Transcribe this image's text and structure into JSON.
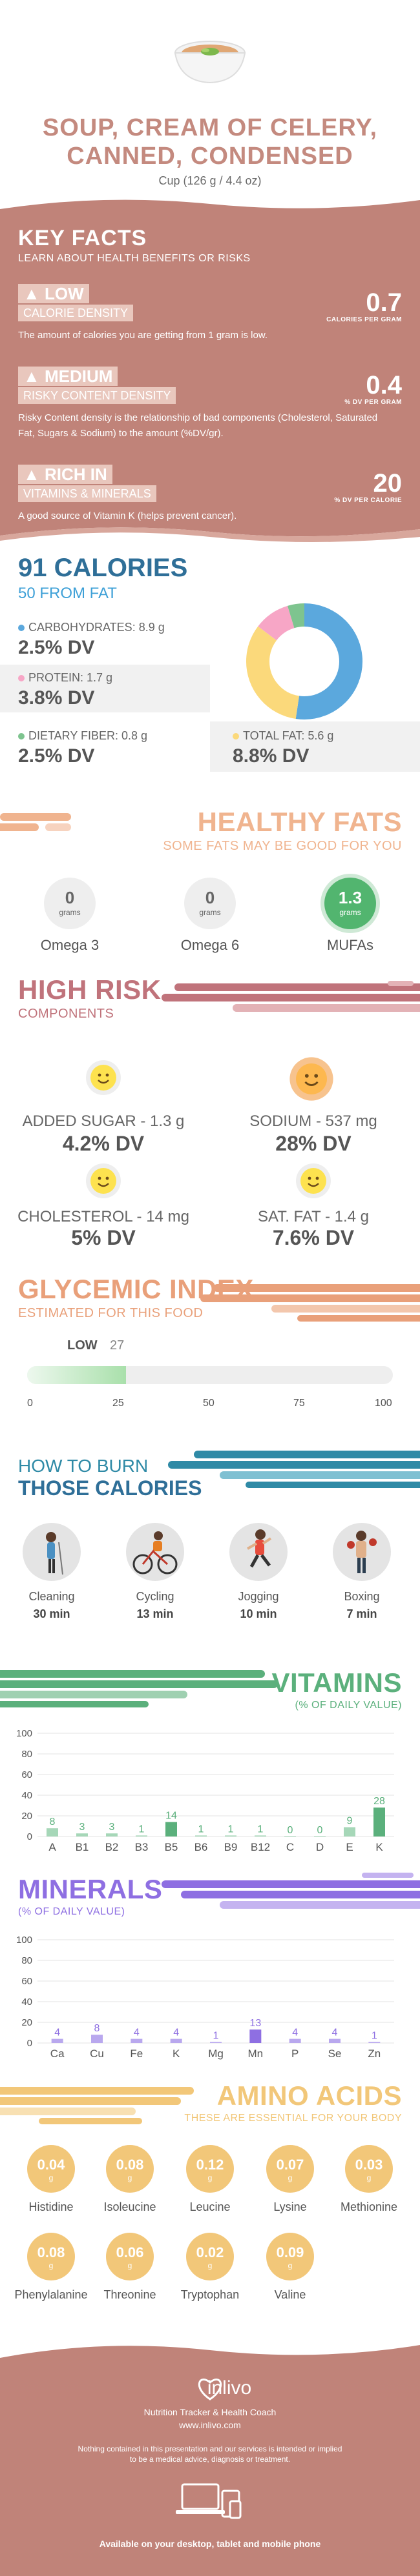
{
  "header": {
    "title_line1": "SOUP, CREAM OF CELERY,",
    "title_line2": "CANNED, CONDENSED",
    "serving": "Cup (126 g / 4.4 oz)"
  },
  "key_facts": {
    "title": "KEY FACTS",
    "subtitle": "LEARN ABOUT HEALTH BENEFITS OR RISKS",
    "items": [
      {
        "label1": "LOW",
        "label2": "CALORIE DENSITY",
        "desc": "The amount of calories you are getting from 1 gram is low.",
        "value": "0.7",
        "unit": "CALORIES PER GRAM",
        "icon": "flame-icon"
      },
      {
        "label1": "MEDIUM",
        "label2": "RISKY CONTENT DENSITY",
        "desc": "Risky Content density is the relationship of bad components (Cholesterol, Saturated Fat, Sugars & Sodium) to the amount (%DV/gr).",
        "value": "0.4",
        "unit": "% DV PER GRAM",
        "icon": "flame-icon"
      },
      {
        "label1": "RICH  IN",
        "label2": "VITAMINS & MINERALS",
        "desc": "A good source of Vitamin K (helps prevent cancer).",
        "value": "20",
        "unit": "% DV PER CALORIE",
        "icon": "flame-icon"
      }
    ],
    "bg_color": "#c08379"
  },
  "calories": {
    "title": "91 CALORIES",
    "subtitle": "50 FROM FAT",
    "carbs_label": "CARBOHYDRATES: 8.9 g",
    "carbs_dv": "2.5% DV",
    "protein_label": "PROTEIN: 1.7 g",
    "protein_dv": "3.8% DV",
    "fiber_label": "DIETARY FIBER: 0.8 g",
    "fiber_dv": "2.5% DV",
    "fat_label": "TOTAL FAT: 5.6 g",
    "fat_dv": "8.8% DV",
    "colors": {
      "carbs": "#5ba8dd",
      "protein": "#f7a6c6",
      "fiber": "#7ec48f",
      "fat": "#fbd97b"
    },
    "donut": {
      "carbs": 8.9,
      "protein": 1.7,
      "fiber": 0.8,
      "fat": 5.6
    }
  },
  "healthy_fats": {
    "title": "HEALTHY FATS",
    "subtitle": "SOME FATS MAY BE GOOD FOR YOU",
    "items": [
      {
        "name": "Omega 3",
        "value": "0",
        "unit": "grams"
      },
      {
        "name": "Omega 6",
        "value": "0",
        "unit": "grams"
      },
      {
        "name": "MUFAs",
        "value": "1.3",
        "unit": "grams"
      }
    ],
    "color": "#f0b48f"
  },
  "high_risk": {
    "title": "HIGH RISK",
    "subtitle": "COMPONENTS",
    "items": [
      {
        "label": "ADDED SUGAR - 1.3 g",
        "dv": "4.2% DV"
      },
      {
        "label": "SODIUM - 537 mg",
        "dv": "28% DV"
      },
      {
        "label": "CHOLESTEROL - 14 mg",
        "dv": "5% DV"
      },
      {
        "label": "SAT. FAT - 1.4 g",
        "dv": "7.6% DV"
      }
    ],
    "color": "#c0737b"
  },
  "glycemic": {
    "title": "GLYCEMIC INDEX",
    "subtitle": "ESTIMATED FOR THIS FOOD",
    "level": "LOW",
    "value": "27",
    "fill_value": 27,
    "ticks": [
      "0",
      "25",
      "50",
      "75",
      "100"
    ],
    "color": "#e9a07a"
  },
  "burn": {
    "title1": "HOW TO BURN",
    "title2": "THOSE CALORIES",
    "items": [
      {
        "name": "Cleaning",
        "time": "30 min"
      },
      {
        "name": "Cycling",
        "time": "13 min"
      },
      {
        "name": "Jogging",
        "time": "10 min"
      },
      {
        "name": "Boxing",
        "time": "7 min"
      }
    ],
    "color": "#2f8aa6"
  },
  "vitamins": {
    "title": "VITAMINS",
    "subtitle": "(% OF DAILY VALUE)",
    "color": "#5bb07c"
  },
  "minerals": {
    "title": "MINERALS",
    "subtitle": "(% OF DAILY VALUE)",
    "color": "#8e6fe2"
  },
  "chart_data": [
    {
      "type": "bar",
      "categories": [
        "A",
        "B1",
        "B2",
        "B3",
        "B5",
        "B6",
        "B9",
        "B12",
        "C",
        "D",
        "E",
        "K"
      ],
      "values": [
        8,
        3,
        3,
        1,
        14,
        1,
        1,
        1,
        0,
        0,
        9,
        28
      ],
      "ylim": [
        0,
        100
      ],
      "yticks": [
        "0",
        "20",
        "40",
        "60",
        "80",
        "100"
      ]
    },
    {
      "type": "bar",
      "categories": [
        "Ca",
        "Cu",
        "Fe",
        "K",
        "Mg",
        "Mn",
        "P",
        "Se",
        "Zn"
      ],
      "values": [
        4,
        8,
        4,
        4,
        1,
        13,
        4,
        4,
        1
      ],
      "ylim": [
        0,
        100
      ],
      "yticks": [
        "0",
        "20",
        "40",
        "60",
        "80",
        "100"
      ]
    }
  ],
  "amino": {
    "title": "AMINO ACIDS",
    "subtitle": "THESE ARE ESSENTIAL FOR YOUR BODY",
    "unit": "g",
    "items": [
      {
        "name": "Histidine",
        "value": "0.04"
      },
      {
        "name": "Isoleucine",
        "value": "0.08"
      },
      {
        "name": "Leucine",
        "value": "0.12"
      },
      {
        "name": "Lysine",
        "value": "0.07"
      },
      {
        "name": "Methionine",
        "value": "0.03"
      },
      {
        "name": "Phenylalanine",
        "value": "0.08"
      },
      {
        "name": "Threonine",
        "value": "0.06"
      },
      {
        "name": "Tryptophan",
        "value": "0.02"
      },
      {
        "name": "Valine",
        "value": "0.09"
      }
    ],
    "color": "#f2c779"
  },
  "footer": {
    "brand": "inlivo",
    "tagline": "Nutrition Tracker & Health Coach",
    "url": "www.inlivo.com",
    "disclaimer1": "Nothing contained in this presentation and our services is intended or implied",
    "disclaimer2": "to be a medical advice, diagnosis or treatment.",
    "available": "Available on your desktop, tablet and mobile phone",
    "bg_color": "#c08379"
  }
}
